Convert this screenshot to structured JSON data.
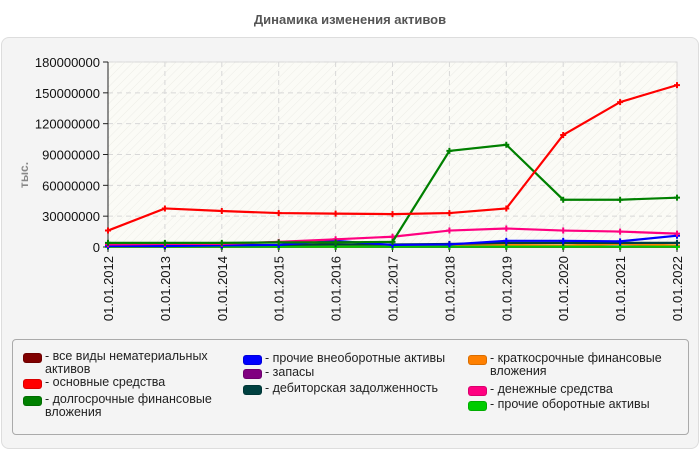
{
  "title": "Динамика изменения активов",
  "chart_data": {
    "type": "line",
    "title": "Динамика изменения активов",
    "xlabel": "",
    "ylabel": "тыс.",
    "ylim": [
      0,
      180000000
    ],
    "yticks": [
      "0",
      "30000000",
      "60000000",
      "90000000",
      "120000000",
      "150000000",
      "180000000"
    ],
    "grid": true,
    "legend_position": "bottom",
    "categories": [
      "01.01.2012",
      "01.01.2013",
      "01.01.2014",
      "01.01.2015",
      "01.01.2016",
      "01.01.2017",
      "01.01.2018",
      "01.01.2019",
      "01.01.2020",
      "01.01.2021",
      "01.01.2022"
    ],
    "series": [
      {
        "name": "все виды нематериальных активов",
        "color": "#800000",
        "values": [
          200000,
          200000,
          200000,
          200000,
          200000,
          200000,
          200000,
          200000,
          200000,
          200000,
          200000
        ]
      },
      {
        "name": "основные средства",
        "color": "#ff0000",
        "values": [
          16000000,
          37500000,
          35000000,
          33000000,
          32500000,
          32000000,
          33000000,
          37500000,
          109000000,
          141000000,
          157500000
        ]
      },
      {
        "name": "долгосрочные финансовые вложения",
        "color": "#008000",
        "values": [
          4000000,
          4000000,
          4000000,
          4500000,
          4500000,
          5000000,
          93500000,
          99500000,
          46000000,
          46000000,
          48000000
        ]
      },
      {
        "name": "прочие внеоборотные активы",
        "color": "#0000ff",
        "values": [
          1000000,
          1000000,
          1500000,
          2000000,
          6000000,
          2000000,
          2500000,
          6000000,
          6000000,
          5500000,
          11000000
        ]
      },
      {
        "name": "запасы",
        "color": "#800080",
        "values": [
          500000,
          500000,
          500000,
          500000,
          500000,
          500000,
          500000,
          500000,
          500000,
          500000,
          500000
        ]
      },
      {
        "name": "дебиторская задолженность",
        "color": "#004040",
        "values": [
          2000000,
          2000000,
          2000000,
          2000000,
          2500000,
          2500000,
          3000000,
          4000000,
          4000000,
          4000000,
          4000000
        ]
      },
      {
        "name": "краткосрочные финансовые вложения",
        "color": "#ff8000",
        "values": [
          500000,
          500000,
          500000,
          500000,
          500000,
          500000,
          2500000,
          2000000,
          1500000,
          3000000,
          1500000
        ]
      },
      {
        "name": "денежные средства",
        "color": "#ff0080",
        "values": [
          2500000,
          3000000,
          3000000,
          5000000,
          7500000,
          10000000,
          16000000,
          18000000,
          16000000,
          15000000,
          13000000
        ]
      },
      {
        "name": "прочие оборотные активы",
        "color": "#00cc00",
        "values": [
          300000,
          300000,
          300000,
          300000,
          300000,
          300000,
          300000,
          300000,
          300000,
          300000,
          300000
        ]
      }
    ]
  },
  "legend": [
    {
      "label": "- все виды нематериальных\nактивов",
      "color": "#800000"
    },
    {
      "label": "- основные средства",
      "color": "#ff0000"
    },
    {
      "label": "- долгосрочные финансовые\nвложения",
      "color": "#008000"
    },
    {
      "label": "- прочие внеоборотные активы",
      "color": "#0000ff"
    },
    {
      "label": "- запасы",
      "color": "#800080"
    },
    {
      "label": "- дебиторская задолженность",
      "color": "#004040"
    },
    {
      "label": "- краткосрочные финансовые\nвложения",
      "color": "#ff8000"
    },
    {
      "label": "- денежные средства",
      "color": "#ff0080"
    },
    {
      "label": "- прочие оборотные активы",
      "color": "#00cc00"
    }
  ]
}
